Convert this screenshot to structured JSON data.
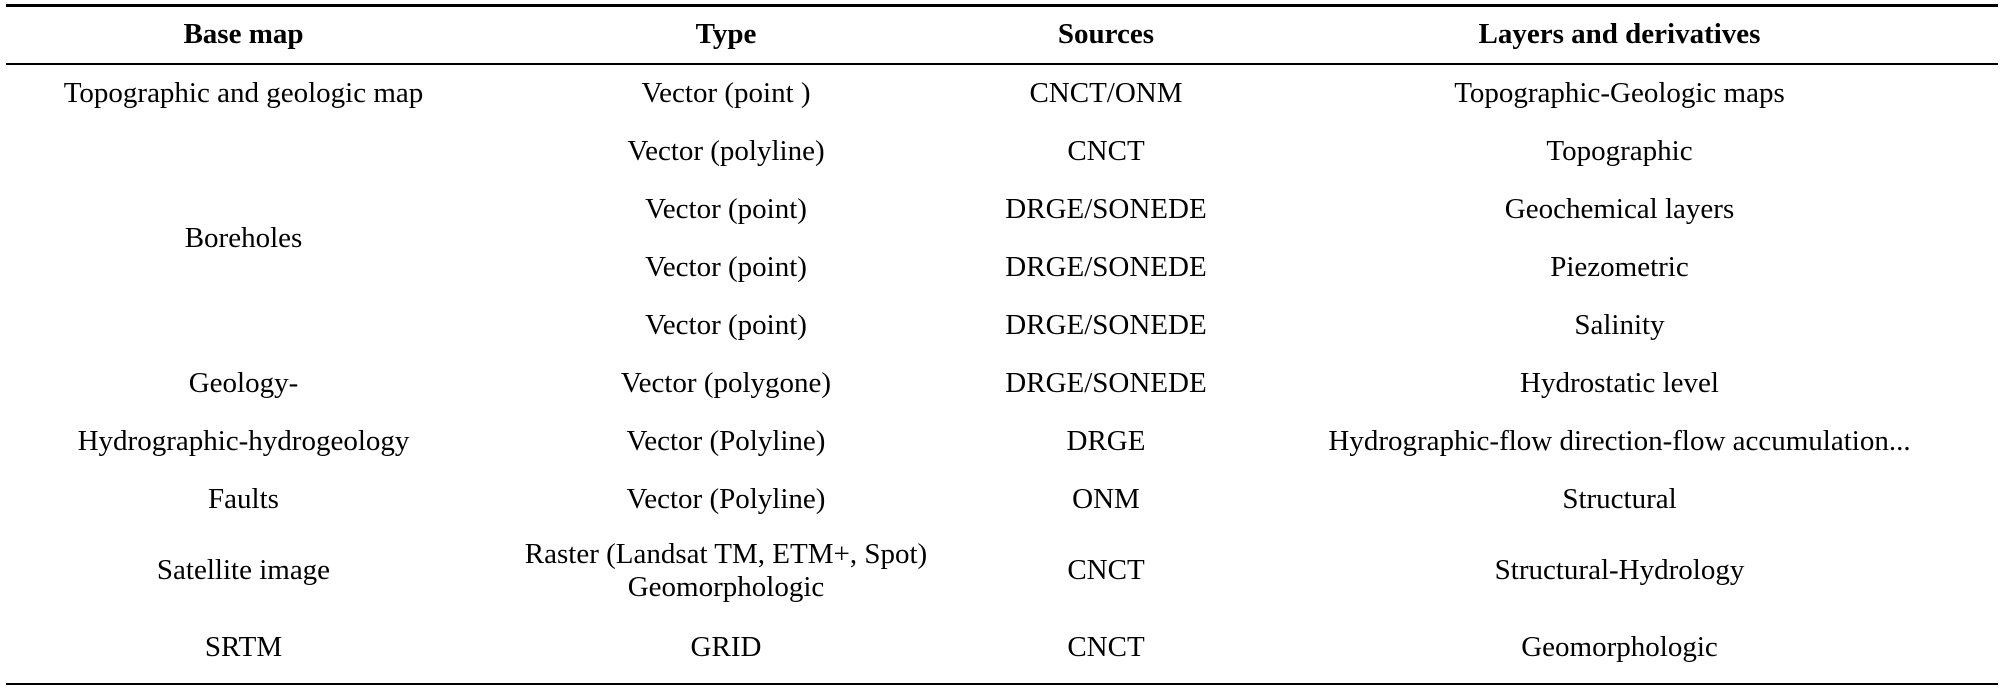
{
  "table": {
    "headers": [
      "Base map",
      "Type",
      "Sources",
      "Layers and derivatives"
    ],
    "rows": [
      {
        "base": "Topographic and geologic map",
        "type": [
          "Vector (point )"
        ],
        "source": "CNCT/ONM",
        "layer": "Topographic-Geologic maps"
      },
      {
        "base": "",
        "type": [
          "Vector (polyline)"
        ],
        "source": "CNCT",
        "layer": "Topographic"
      },
      {
        "base": "",
        "type": [
          "Vector (point)"
        ],
        "source": "DRGE/SONEDE",
        "layer": "Geochemical layers"
      },
      {
        "base": "",
        "type": [
          "Vector (point)"
        ],
        "source": "DRGE/SONEDE",
        "layer": "Piezometric"
      },
      {
        "base": "",
        "type": [
          "Vector (point)"
        ],
        "source": "DRGE/SONEDE",
        "layer": "Salinity"
      },
      {
        "base": "Geology-",
        "type": [
          "Vector (polygone)"
        ],
        "source": "DRGE/SONEDE",
        "layer": "Hydrostatic level"
      },
      {
        "base": "Hydrographic-hydrogeology",
        "type": [
          "Vector (Polyline)"
        ],
        "source": "DRGE",
        "layer": "Hydrographic-flow direction-flow accumulation..."
      },
      {
        "base": "Faults",
        "type": [
          "Vector (Polyline)"
        ],
        "source": "ONM",
        "layer": "Structural"
      },
      {
        "base": "Satellite image",
        "type": [
          "Raster (Landsat TM, ETM+, Spot)",
          "Geomorphologic"
        ],
        "source": "CNCT",
        "layer": "Structural-Hydrology"
      },
      {
        "base": "SRTM",
        "type": [
          "GRID"
        ],
        "source": "CNCT",
        "layer": "Geomorphologic"
      }
    ],
    "merged": {
      "boreholes_label": "Boreholes"
    }
  }
}
